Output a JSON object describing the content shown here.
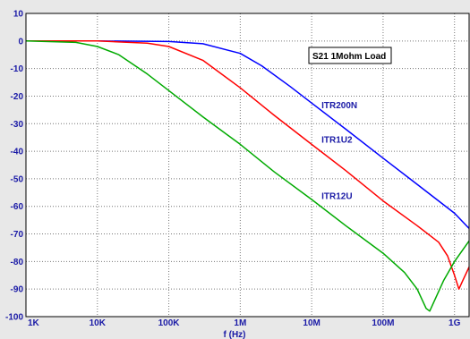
{
  "chart_data": {
    "type": "line",
    "title": "",
    "xlabel": "f (Hz)",
    "ylabel": "",
    "x_scale": "log",
    "xlim": [
      1000,
      1600000000
    ],
    "ylim": [
      -100,
      10
    ],
    "grid": true,
    "x_ticks": [
      {
        "value": 1000,
        "label": "1K"
      },
      {
        "value": 10000,
        "label": "10K"
      },
      {
        "value": 100000,
        "label": "100K"
      },
      {
        "value": 1000000,
        "label": "1M"
      },
      {
        "value": 10000000,
        "label": "10M"
      },
      {
        "value": 100000000,
        "label": "100M"
      },
      {
        "value": 1000000000,
        "label": "1G"
      }
    ],
    "y_ticks": [
      {
        "value": 10,
        "label": "10"
      },
      {
        "value": 0,
        "label": "0"
      },
      {
        "value": -10,
        "label": "-10"
      },
      {
        "value": -20,
        "label": "-20"
      },
      {
        "value": -30,
        "label": "-30"
      },
      {
        "value": -40,
        "label": "-40"
      },
      {
        "value": -50,
        "label": "-50"
      },
      {
        "value": -60,
        "label": "-60"
      },
      {
        "value": -70,
        "label": "-70"
      },
      {
        "value": -80,
        "label": "-80"
      },
      {
        "value": -90,
        "label": "-90"
      },
      {
        "value": -100,
        "label": "-100"
      }
    ],
    "annotation": "S21 1Mohm Load",
    "series": [
      {
        "name": "ITR200N",
        "color": "#0000ff",
        "x": [
          1000,
          10000,
          100000,
          300000,
          1000000,
          2000000,
          5000000,
          10000000,
          30000000,
          100000000,
          300000000,
          1000000000,
          1600000000
        ],
        "y": [
          0,
          0,
          -0.2,
          -1,
          -4.5,
          -9,
          -16.5,
          -22.5,
          -32,
          -42.5,
          -52,
          -62.5,
          -68
        ]
      },
      {
        "name": "ITR1U2",
        "color": "#ff0000",
        "x": [
          1000,
          10000,
          50000,
          100000,
          300000,
          1000000,
          3000000,
          10000000,
          30000000,
          100000000,
          300000000,
          600000000,
          800000000,
          1000000000,
          1150000000,
          1300000000,
          1600000000
        ],
        "y": [
          0,
          0,
          -0.8,
          -2,
          -7,
          -17,
          -27,
          -37.5,
          -47,
          -58,
          -67,
          -73,
          -78,
          -85,
          -90,
          -87,
          -82
        ]
      },
      {
        "name": "ITR12U",
        "color": "#00aa00",
        "x": [
          1000,
          5000,
          10000,
          20000,
          50000,
          100000,
          300000,
          1000000,
          3000000,
          10000000,
          30000000,
          100000000,
          200000000,
          300000000,
          400000000,
          450000000,
          550000000,
          700000000,
          1000000000,
          1600000000
        ],
        "y": [
          0,
          -0.5,
          -2,
          -5,
          -12,
          -18,
          -27.5,
          -37.5,
          -47.5,
          -57.5,
          -67,
          -77,
          -84,
          -90,
          -97,
          -98,
          -93,
          -87,
          -80,
          -72.5
        ]
      }
    ]
  }
}
